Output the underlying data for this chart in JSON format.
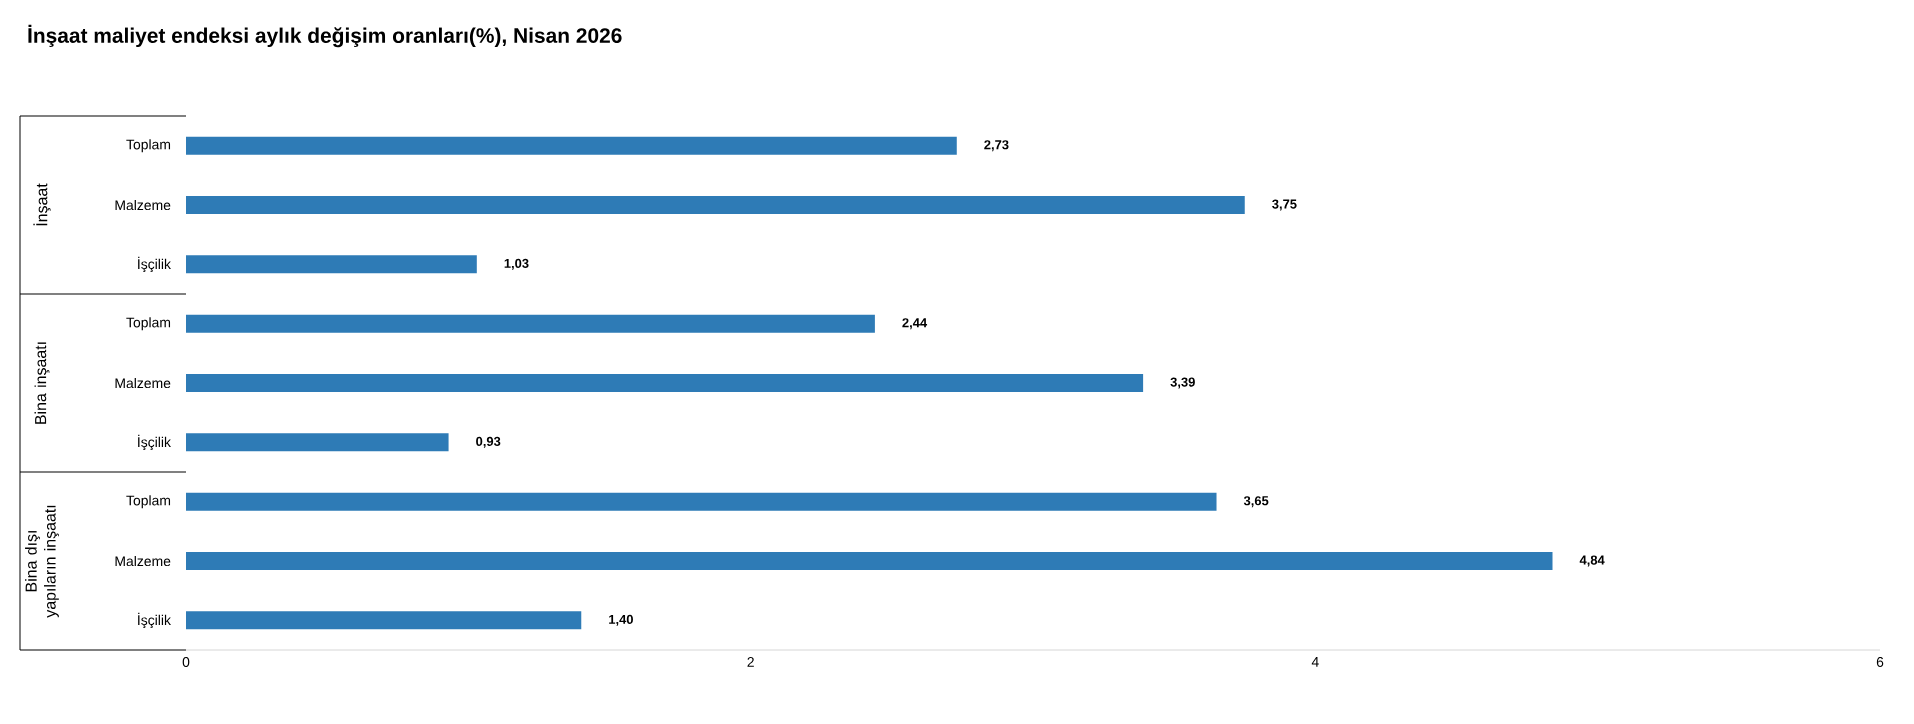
{
  "chart_data": {
    "type": "bar",
    "orientation": "horizontal",
    "title": "İnşaat maliyet endeksi aylık değişim oranları(%), Nisan 2026",
    "categories": [
      "Toplam",
      "Malzeme",
      "İşçilik",
      "Toplam",
      "Malzeme",
      "İşçilik",
      "Toplam",
      "Malzeme",
      "İşçilik"
    ],
    "values": [
      2.73,
      3.75,
      1.03,
      2.44,
      3.39,
      0.93,
      3.65,
      4.84,
      1.4
    ],
    "value_labels": [
      "2,73",
      "3,75",
      "1,03",
      "2,44",
      "3,39",
      "0,93",
      "3,65",
      "4,84",
      "1,40"
    ],
    "color": "#2e7bb6",
    "annotations": [
      "İnşaat",
      "Bina inşaatı",
      "Bina dışı yapıların inşaatı"
    ],
    "xlim": [
      0,
      6
    ],
    "xticks": [
      0,
      2,
      4,
      6
    ]
  }
}
